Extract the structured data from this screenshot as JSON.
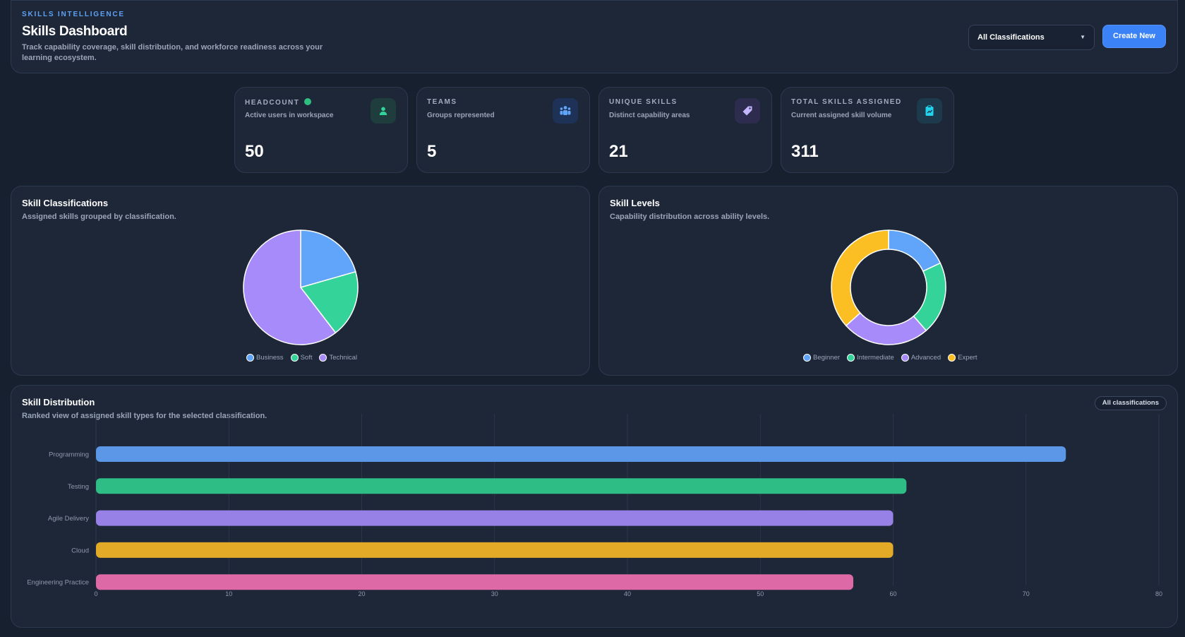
{
  "header": {
    "eyebrow": "SKILLS INTELLIGENCE",
    "title": "Skills Dashboard",
    "subtitle": "Track capability coverage, skill distribution, and workforce readiness across your learning ecosystem.",
    "filter_value": "All Classifications",
    "create_label": "Create New"
  },
  "kpis": [
    {
      "label": "HEADCOUNT",
      "desc": "Active users in workspace",
      "value": "50",
      "icon": "user-icon",
      "accent": "#34d399"
    },
    {
      "label": "TEAMS",
      "desc": "Groups represented",
      "value": "5",
      "icon": "users-group-icon",
      "accent": "#60a5fa"
    },
    {
      "label": "UNIQUE SKILLS",
      "desc": "Distinct capability areas",
      "value": "21",
      "icon": "tag-icon",
      "accent": "#a78bfa"
    },
    {
      "label": "TOTAL SKILLS ASSIGNED",
      "desc": "Current assigned skill volume",
      "value": "311",
      "icon": "clipboard-icon",
      "accent": "#22d3ee"
    }
  ],
  "classifications": {
    "title": "Skill Classifications",
    "subtitle": "Assigned skills grouped by classification."
  },
  "levels": {
    "title": "Skill Levels",
    "subtitle": "Capability distribution across ability levels."
  },
  "distribution": {
    "title": "Skill Distribution",
    "subtitle": "Ranked view of assigned skill types for the selected classification.",
    "filter_pill": "All classifications"
  },
  "chart_data": [
    {
      "type": "pie",
      "categories": [
        "Business",
        "Soft",
        "Technical"
      ],
      "values": [
        64,
        59,
        188
      ],
      "colors": [
        "#60a5fa",
        "#34d399",
        "#a78bfa"
      ],
      "legend": "bottom"
    },
    {
      "type": "pie",
      "donut": true,
      "categories": [
        "Beginner",
        "Intermediate",
        "Advanced",
        "Expert"
      ],
      "values": [
        56,
        64,
        77,
        114
      ],
      "colors": [
        "#60a5fa",
        "#34d399",
        "#a78bfa",
        "#fbbf24"
      ],
      "legend": "bottom"
    },
    {
      "type": "bar",
      "orientation": "horizontal",
      "categories": [
        "Programming",
        "Testing",
        "Agile Delivery",
        "Cloud",
        "Engineering Practice"
      ],
      "values": [
        73,
        61,
        60,
        60,
        57
      ],
      "colors": [
        "#5b97e6",
        "#2dbd85",
        "#9881e6",
        "#e2aa27",
        "#dd69a6"
      ],
      "xlim": [
        0,
        80
      ],
      "xticks": [
        "0",
        "10",
        "20",
        "30",
        "40",
        "50",
        "60",
        "70",
        "80"
      ],
      "grid": true
    }
  ]
}
